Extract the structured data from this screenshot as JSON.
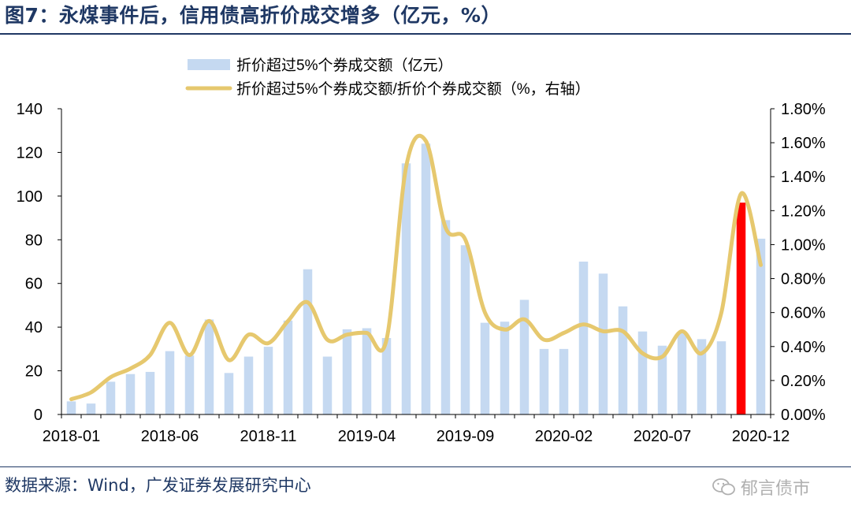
{
  "header": {
    "title": "图7：永煤事件后，信用债高折价成交增多（亿元，%）"
  },
  "footer": {
    "source": "数据来源：Wind，广发证券发展研究中心",
    "watermark": "郁言债市"
  },
  "colors": {
    "bar": "#c5d9f1",
    "line": "#e6c86e",
    "highlight": "#ff0000",
    "title": "#1f3864"
  },
  "chart_data": {
    "type": "bar",
    "legend": [
      {
        "label": "折价超过5%个券成交额（亿元）",
        "kind": "bar"
      },
      {
        "label": "折价超过5%个券成交额/折价个券成交额（%，右轴）",
        "kind": "line"
      }
    ],
    "legend_position": "top-center",
    "x_tick_labels": [
      "2018-01",
      "2018-06",
      "2018-11",
      "2019-04",
      "2019-09",
      "2020-02",
      "2020-07",
      "2020-12"
    ],
    "y_left_ticks": [
      "0",
      "20",
      "40",
      "60",
      "80",
      "100",
      "120",
      "140"
    ],
    "y_right_ticks": [
      "0.00%",
      "0.20%",
      "0.40%",
      "0.60%",
      "0.80%",
      "1.00%",
      "1.20%",
      "1.40%",
      "1.60%",
      "1.80%"
    ],
    "ylim_left": [
      0,
      140
    ],
    "ylim_right": [
      0,
      1.8
    ],
    "grid": false,
    "highlight_index": 34,
    "categories": [
      "2018-01",
      "2018-02",
      "2018-03",
      "2018-04",
      "2018-05",
      "2018-06",
      "2018-07",
      "2018-08",
      "2018-09",
      "2018-10",
      "2018-11",
      "2018-12",
      "2019-01",
      "2019-02",
      "2019-03",
      "2019-04",
      "2019-05",
      "2019-06",
      "2019-07",
      "2019-08",
      "2019-09",
      "2019-10",
      "2019-11",
      "2019-12",
      "2020-01",
      "2020-02",
      "2020-03",
      "2020-04",
      "2020-05",
      "2020-06",
      "2020-07",
      "2020-08",
      "2020-09",
      "2020-10",
      "2020-11",
      "2020-12"
    ],
    "series": [
      {
        "name": "折价超过5%个券成交额（亿元）",
        "axis": "left",
        "values": [
          6,
          5,
          15,
          18.5,
          19.5,
          29,
          27,
          43.5,
          19,
          26.5,
          31,
          43,
          66.5,
          26.5,
          39,
          39.5,
          35,
          115,
          124,
          89,
          77.5,
          42,
          42.5,
          52.5,
          30,
          30,
          70,
          64.5,
          49.5,
          38,
          31.5,
          37.5,
          34.5,
          33.5,
          97,
          80.5
        ]
      },
      {
        "name": "折价超过5%个券成交额/折价个券成交额（%，右轴）",
        "axis": "right",
        "values": [
          0.09,
          0.13,
          0.22,
          0.27,
          0.35,
          0.54,
          0.35,
          0.55,
          0.32,
          0.47,
          0.42,
          0.55,
          0.66,
          0.44,
          0.47,
          0.48,
          0.44,
          1.46,
          1.61,
          1.1,
          1.03,
          0.6,
          0.5,
          0.56,
          0.44,
          0.48,
          0.53,
          0.49,
          0.49,
          0.36,
          0.34,
          0.49,
          0.36,
          0.6,
          1.3,
          0.88
        ]
      }
    ]
  }
}
